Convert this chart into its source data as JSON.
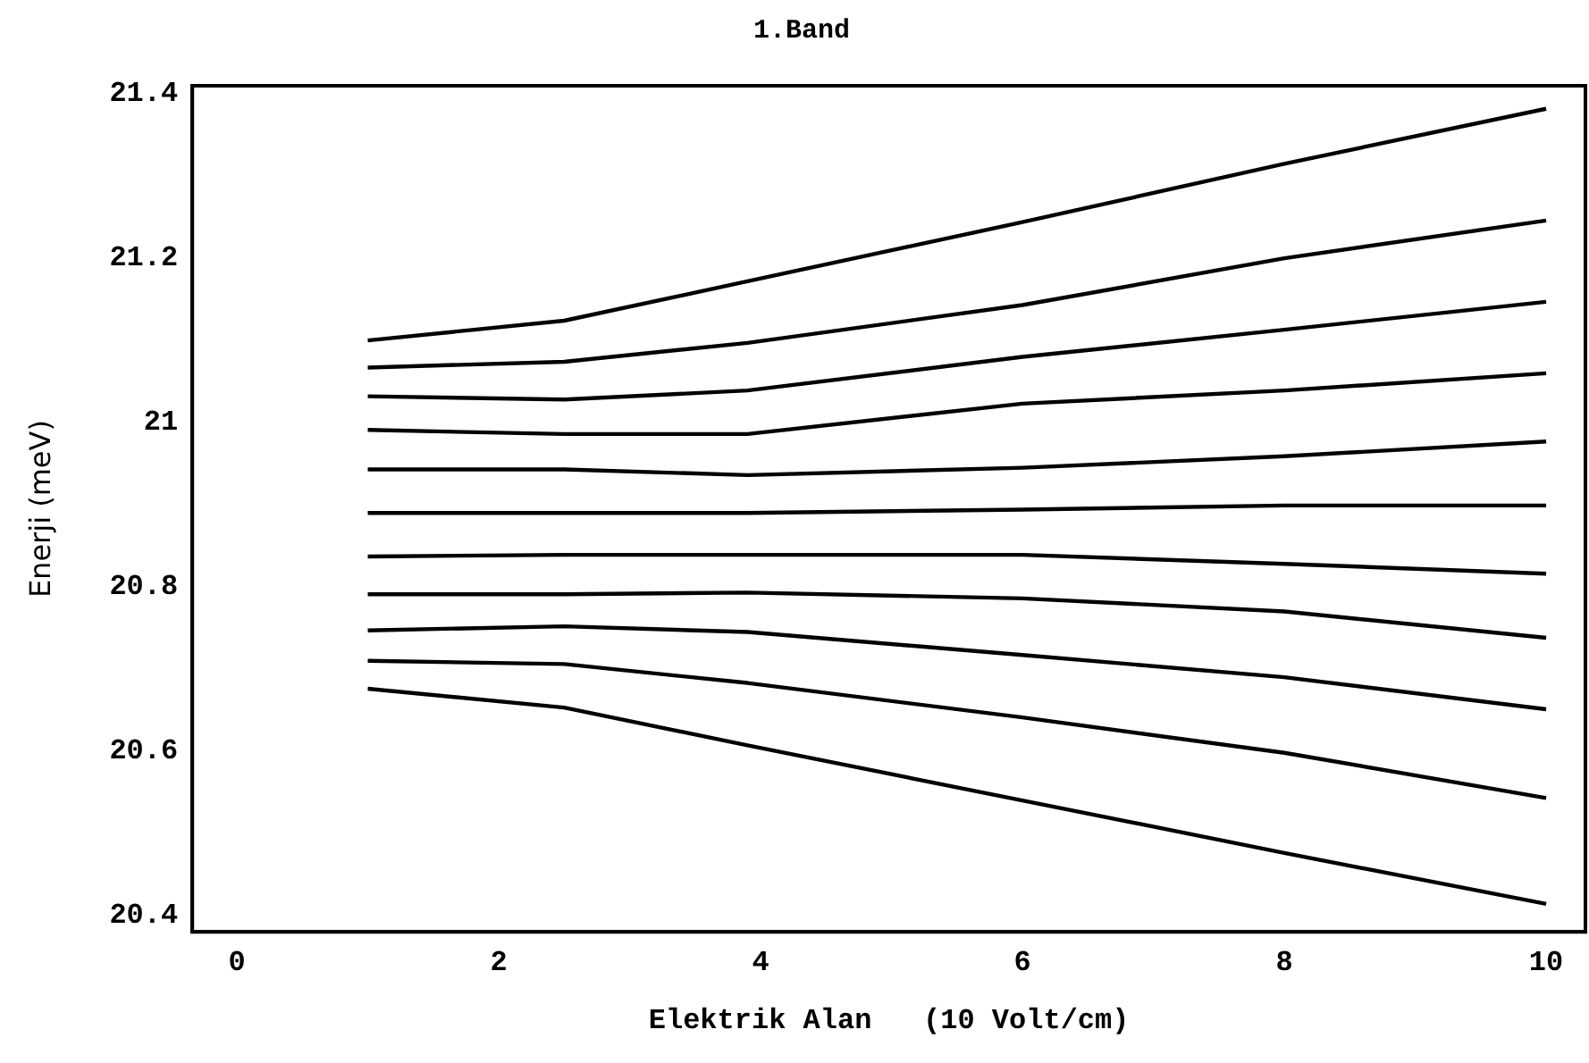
{
  "chart_data": {
    "type": "line",
    "title": "1.Band",
    "xlabel": "Elektrik Alan   (10 Volt/cm)",
    "ylabel": "Enerji (meV)",
    "x": [
      1,
      2.5,
      3.9,
      6,
      8,
      10
    ],
    "xlim": [
      -0.34,
      10.3
    ],
    "xticks": [
      0,
      2,
      4,
      6,
      8,
      10
    ],
    "ylim": [
      20.38,
      21.41
    ],
    "yticks": [
      20.4,
      20.6,
      20.8,
      21,
      21.2,
      21.4
    ],
    "grid": false,
    "legend": false,
    "marker": "none",
    "line_style": "solid",
    "series": [
      {
        "color": "#000000",
        "values": [
          21.1,
          21.124,
          21.172,
          21.244,
          21.315,
          21.382
        ]
      },
      {
        "color": "#000000",
        "values": [
          21.067,
          21.074,
          21.097,
          21.143,
          21.2,
          21.246
        ]
      },
      {
        "color": "#000000",
        "values": [
          21.032,
          21.028,
          21.039,
          21.08,
          21.113,
          21.147
        ]
      },
      {
        "color": "#000000",
        "values": [
          20.991,
          20.986,
          20.986,
          21.023,
          21.039,
          21.06
        ]
      },
      {
        "color": "#000000",
        "values": [
          20.943,
          20.943,
          20.936,
          20.945,
          20.959,
          20.977
        ]
      },
      {
        "color": "#000000",
        "values": [
          20.89,
          20.89,
          20.89,
          20.894,
          20.899,
          20.899
        ]
      },
      {
        "color": "#000000",
        "values": [
          20.837,
          20.839,
          20.839,
          20.839,
          20.828,
          20.816
        ]
      },
      {
        "color": "#000000",
        "values": [
          20.791,
          20.791,
          20.793,
          20.786,
          20.77,
          20.738
        ]
      },
      {
        "color": "#000000",
        "values": [
          20.747,
          20.752,
          20.745,
          20.717,
          20.69,
          20.651
        ]
      },
      {
        "color": "#000000",
        "values": [
          20.71,
          20.706,
          20.683,
          20.641,
          20.598,
          20.543
        ]
      },
      {
        "color": "#000000",
        "values": [
          20.676,
          20.653,
          20.607,
          20.54,
          20.476,
          20.414
        ]
      }
    ]
  }
}
